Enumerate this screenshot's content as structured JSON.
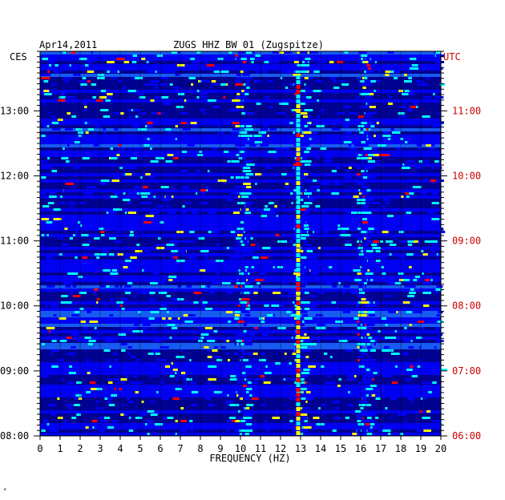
{
  "chart_data": {
    "type": "heatmap",
    "title": "ZUGS HHZ BW 01 (Zugspitze)",
    "date_label": "Apr14,2011",
    "left_axis_label": "CES",
    "right_axis_label": "UTC",
    "xlabel": "FREQUENCY (HZ)",
    "x_ticks": [
      "0",
      "1",
      "2",
      "3",
      "4",
      "5",
      "6",
      "7",
      "8",
      "9",
      "10",
      "11",
      "12",
      "13",
      "14",
      "15",
      "16",
      "17",
      "18",
      "19",
      "20"
    ],
    "xlim": [
      0,
      20
    ],
    "left_time_ticks": [
      "08:00",
      "09:00",
      "10:00",
      "11:00",
      "12:00",
      "13:00"
    ],
    "right_time_ticks": [
      "06:00",
      "07:00",
      "08:00",
      "09:00",
      "10:00",
      "11:00"
    ],
    "time_range_ces": [
      "08:00",
      "13:55"
    ],
    "colormap": [
      "#00008f",
      "#0000ff",
      "#00ffff",
      "#ffff00",
      "#ff0000"
    ],
    "background_color": "#0a0a9e",
    "grid": true,
    "spectral_features": [
      {
        "freq_hz": 12.9,
        "description": "persistent narrow line"
      },
      {
        "freq_hz": 10.0,
        "description": "intermittent energy"
      },
      {
        "freq_hz": 16.1,
        "description": "intermittent energy"
      }
    ],
    "corner_mark": "*"
  },
  "colors": {
    "utc_label": "#cc0000",
    "axis_text": "#000000"
  }
}
